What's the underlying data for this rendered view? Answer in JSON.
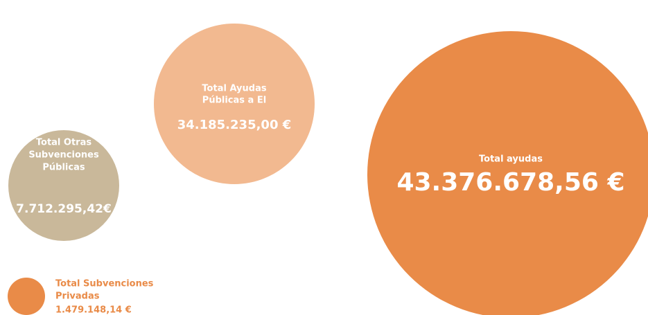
{
  "items": [
    {
      "label_lines": [
        "Total Otras",
        "Subvenciones",
        "Públicas"
      ],
      "amount": "7.712.295,42€"
    },
    {
      "label_lines": [
        "Total Ayudas",
        "Públicas a El"
      ],
      "amount": "34.185.235,00 €"
    },
    {
      "label_lines": [
        "Total ayudas"
      ],
      "amount": "43.376.678,56 €"
    },
    {
      "label_lines": [
        "Total Subvenciones",
        "Privadas"
      ],
      "amount": "1.479.148,14 €"
    }
  ]
}
